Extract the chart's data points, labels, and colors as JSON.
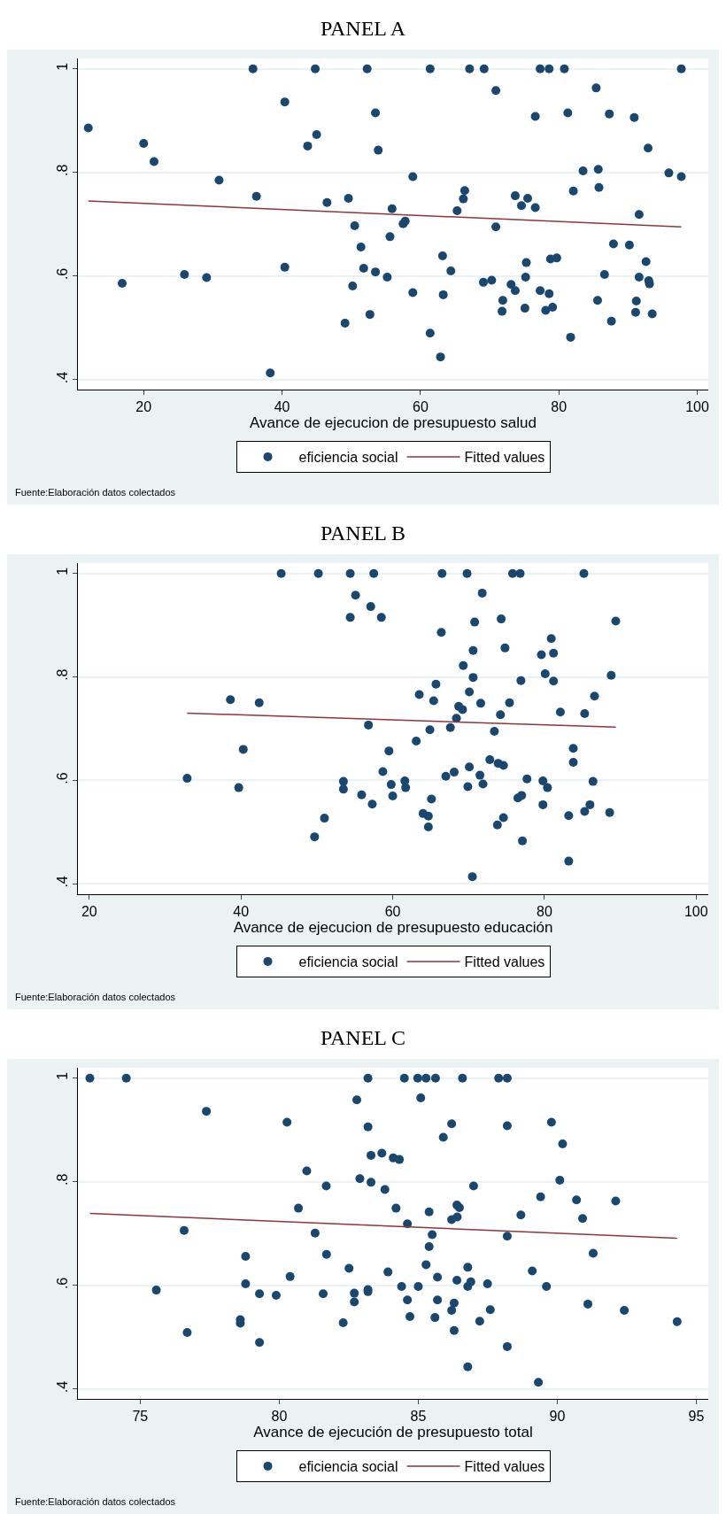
{
  "chart_data": [
    {
      "type": "scatter",
      "title": "PANEL A",
      "xlabel": "Avance de ejecucion de presupuesto salud",
      "xlim": [
        10.5,
        101.6
      ],
      "ylim": [
        0.381,
        1.02
      ],
      "xticks": [
        20,
        40,
        60,
        80,
        100
      ],
      "yticks": [
        {
          "value": 0.4,
          "label": ".4"
        },
        {
          "value": 0.6,
          "label": ".6"
        },
        {
          "value": 0.8,
          "label": ".8"
        },
        {
          "value": 1,
          "label": "1"
        }
      ],
      "grid": "y",
      "legend": "bottom",
      "annotations": [
        "Fuente:Elaboración datos colectados"
      ],
      "series": [
        {
          "name": "eficiencia social",
          "color": "#1a476f",
          "marker": "circle",
          "x": [
            12.0,
            16.9,
            20.0,
            21.5,
            25.9,
            29.1,
            30.9,
            35.8,
            36.3,
            38.3,
            40.4,
            40.4,
            43.7,
            44.8,
            45.0,
            46.5,
            49.1,
            49.6,
            50.2,
            50.5,
            51.4,
            51.8,
            52.3,
            52.7,
            53.5,
            53.5,
            53.9,
            55.2,
            55.6,
            55.9,
            57.5,
            57.8,
            58.9,
            58.9,
            61.4,
            61.4,
            62.9,
            63.2,
            63.3,
            64.4,
            65.3,
            66.2,
            66.4,
            67.1,
            69.1,
            69.2,
            70.3,
            70.9,
            70.9,
            71.9,
            71.8,
            73.1,
            73.7,
            73.7,
            74.6,
            75.2,
            75.1,
            75.5,
            75.3,
            76.6,
            76.6,
            77.3,
            77.3,
            78.6,
            78.6,
            78.1,
            78.8,
            79.1,
            79.7,
            80.8,
            81.3,
            82.1,
            81.7,
            83.5,
            85.4,
            85.7,
            85.8,
            85.6,
            87.3,
            86.6,
            87.6,
            87.9,
            90.2,
            90.9,
            91.2,
            91.1,
            91.6,
            91.6,
            92.6,
            92.9,
            93.0,
            93.1,
            93.5,
            95.9,
            97.7,
            97.7
          ],
          "values": [
            0.886,
            0.586,
            0.856,
            0.821,
            0.603,
            0.597,
            0.785,
            1,
            0.754,
            0.413,
            0.936,
            0.617,
            0.851,
            1,
            0.873,
            0.742,
            0.509,
            0.75,
            0.581,
            0.697,
            0.656,
            0.615,
            1,
            0.526,
            0.915,
            0.608,
            0.843,
            0.598,
            0.676,
            0.73,
            0.701,
            0.706,
            0.792,
            0.568,
            1,
            0.49,
            0.444,
            0.639,
            0.564,
            0.61,
            0.726,
            0.749,
            0.765,
            1,
            0.588,
            1,
            0.592,
            0.958,
            0.695,
            0.553,
            0.532,
            0.584,
            0.755,
            0.572,
            0.736,
            0.598,
            0.538,
            0.75,
            0.626,
            0.732,
            0.908,
            1,
            0.572,
            1,
            0.566,
            0.534,
            0.633,
            0.54,
            0.635,
            1,
            0.915,
            0.764,
            0.482,
            0.803,
            0.963,
            0.806,
            0.771,
            0.553,
            0.913,
            0.603,
            0.513,
            0.662,
            0.66,
            0.906,
            0.552,
            0.53,
            0.598,
            0.719,
            0.628,
            0.847,
            0.591,
            0.585,
            0.527,
            0.799,
            0.792,
            1
          ]
        },
        {
          "name": "Fitted values",
          "type": "line",
          "color": "#90353b",
          "marker": "none",
          "x": [
            12.0,
            97.7
          ],
          "values": [
            0.745,
            0.695
          ]
        }
      ]
    },
    {
      "type": "scatter",
      "title": "PANEL B",
      "xlabel": "Avance de ejecucion de presupuesto educación",
      "xlim": [
        18.5,
        101.6
      ],
      "ylim": [
        0.38,
        1.02
      ],
      "xticks": [
        20,
        40,
        60,
        80,
        100
      ],
      "yticks": [
        {
          "value": 0.4,
          "label": ".4"
        },
        {
          "value": 0.6,
          "label": ".6"
        },
        {
          "value": 0.8,
          "label": ".8"
        },
        {
          "value": 1,
          "label": "1"
        }
      ],
      "grid": "y",
      "legend": "bottom",
      "annotations": [
        "Fuente:Elaboración datos colectados"
      ],
      "series": [
        {
          "name": "eficiencia social",
          "color": "#1a476f",
          "marker": "circle",
          "x": [
            32.9,
            38.6,
            39.7,
            40.3,
            42.4,
            45.3,
            49.7,
            50.2,
            51.0,
            53.5,
            53.5,
            54.4,
            54.4,
            55.1,
            55.9,
            56.8,
            57.1,
            57.3,
            57.5,
            58.5,
            58.7,
            59.5,
            59.8,
            60.0,
            61.6,
            61.7,
            63.1,
            63.5,
            64.0,
            64.7,
            64.7,
            64.9,
            65.1,
            65.4,
            65.7,
            66.4,
            66.5,
            67.0,
            67.6,
            68.1,
            68.4,
            68.7,
            69.2,
            69.3,
            69.8,
            69.9,
            70.1,
            70.1,
            70.5,
            70.6,
            70.6,
            70.8,
            71.5,
            71.6,
            71.8,
            71.9,
            72.8,
            73.4,
            73.8,
            73.9,
            74.2,
            74.3,
            74.6,
            74.6,
            74.8,
            75.4,
            75.8,
            76.5,
            76.8,
            76.9,
            77.0,
            77.1,
            77.7,
            79.6,
            79.8,
            79.8,
            80.1,
            80.4,
            80.9,
            81.2,
            81.2,
            82.1,
            83.2,
            83.2,
            83.8,
            83.8,
            85.2,
            85.3,
            85.3,
            86.0,
            86.4,
            86.6,
            88.6,
            88.8,
            89.4
          ],
          "values": [
            0.604,
            0.756,
            0.586,
            0.66,
            0.75,
            1,
            0.491,
            1,
            0.527,
            0.598,
            0.583,
            1,
            0.915,
            0.958,
            0.572,
            0.707,
            0.936,
            0.554,
            1,
            0.915,
            0.617,
            0.657,
            0.592,
            0.57,
            0.599,
            0.586,
            0.676,
            0.766,
            0.536,
            0.531,
            0.51,
            0.698,
            0.564,
            0.754,
            0.786,
            0.886,
            1,
            0.608,
            0.702,
            0.616,
            0.72,
            0.743,
            0.737,
            0.822,
            1,
            0.588,
            0.771,
            0.626,
            0.414,
            0.799,
            0.851,
            0.906,
            0.61,
            0.749,
            0.962,
            0.593,
            0.64,
            0.695,
            0.514,
            0.633,
            0.727,
            0.912,
            0.528,
            0.629,
            0.856,
            0.75,
            1,
            0.566,
            1,
            0.793,
            0.571,
            0.483,
            0.603,
            0.843,
            0.599,
            0.553,
            0.806,
            0.586,
            0.874,
            0.846,
            0.792,
            0.732,
            0.532,
            0.444,
            0.662,
            0.635,
            1,
            0.729,
            0.54,
            0.553,
            0.598,
            0.763,
            0.538,
            0.803,
            0.908
          ]
        },
        {
          "name": "Fitted values",
          "type": "line",
          "color": "#90353b",
          "marker": "none",
          "x": [
            32.9,
            89.4
          ],
          "values": [
            0.73,
            0.703
          ]
        }
      ]
    },
    {
      "type": "scatter",
      "title": "PANEL C",
      "xlabel": "Avance de ejecución de presupuesto total",
      "xlim": [
        72.76,
        95.43
      ],
      "ylim": [
        0.381,
        1.02
      ],
      "xticks": [
        75,
        80,
        85,
        90,
        95
      ],
      "yticks": [
        {
          "value": 0.4,
          "label": ".4"
        },
        {
          "value": 0.6,
          "label": ".6"
        },
        {
          "value": 0.8,
          "label": ".8"
        },
        {
          "value": 1,
          "label": "1"
        }
      ],
      "grid": "y",
      "legend": "bottom",
      "annotations": [
        "Fuente:Elaboración datos colectados"
      ],
      "series": [
        {
          "name": "eficiencia social",
          "color": "#1a476f",
          "marker": "circle",
          "x": [
            73.19,
            74.5,
            75.58,
            76.58,
            76.69,
            77.38,
            78.6,
            78.6,
            78.79,
            78.79,
            79.29,
            79.29,
            79.89,
            80.28,
            80.39,
            80.69,
            80.99,
            81.29,
            81.58,
            81.69,
            81.7,
            82.3,
            82.51,
            82.7,
            82.7,
            82.79,
            82.9,
            83.19,
            83.19,
            83.19,
            83.19,
            83.3,
            83.3,
            83.69,
            83.8,
            83.91,
            84.1,
            84.2,
            84.32,
            84.4,
            84.5,
            84.61,
            84.61,
            84.7,
            84.98,
            85.0,
            85.09,
            85.28,
            85.28,
            85.39,
            85.39,
            85.5,
            85.62,
            85.6,
            85.69,
            85.69,
            85.9,
            86.2,
            86.2,
            86.2,
            86.29,
            86.29,
            86.39,
            86.4,
            86.39,
            86.48,
            86.59,
            86.78,
            86.78,
            86.78,
            86.89,
            86.99,
            87.21,
            87.49,
            87.59,
            87.89,
            88.2,
            88.2,
            88.2,
            88.2,
            88.69,
            89.1,
            89.32,
            89.4,
            89.61,
            89.79,
            90.09,
            90.19,
            90.69,
            90.91,
            91.1,
            91.29,
            92.1,
            92.41,
            94.31
          ],
          "values": [
            1,
            1,
            0.591,
            0.706,
            0.509,
            0.936,
            0.534,
            0.527,
            0.656,
            0.603,
            0.584,
            0.49,
            0.581,
            0.915,
            0.617,
            0.749,
            0.821,
            0.701,
            0.584,
            0.792,
            0.66,
            0.528,
            0.633,
            0.585,
            0.568,
            0.958,
            0.806,
            1,
            0.906,
            0.592,
            0.588,
            0.851,
            0.799,
            0.855,
            0.785,
            0.626,
            0.846,
            0.749,
            0.843,
            0.598,
            1,
            0.572,
            0.719,
            0.54,
            1,
            0.598,
            0.962,
            1,
            0.64,
            0.675,
            0.742,
            0.698,
            1,
            0.538,
            0.616,
            0.572,
            0.886,
            0.912,
            0.727,
            0.552,
            0.566,
            0.513,
            0.61,
            0.732,
            0.755,
            0.75,
            1,
            0.635,
            0.598,
            0.443,
            0.607,
            0.792,
            0.531,
            0.603,
            0.553,
            1,
            1,
            0.908,
            0.695,
            0.482,
            0.736,
            0.628,
            0.413,
            0.771,
            0.598,
            0.915,
            0.803,
            0.873,
            0.765,
            0.729,
            0.564,
            0.662,
            0.763,
            0.552,
            0.53
          ]
        },
        {
          "name": "Fitted values",
          "type": "line",
          "color": "#90353b",
          "marker": "none",
          "x": [
            73.19,
            94.31
          ],
          "values": [
            0.739,
            0.691
          ]
        }
      ]
    }
  ]
}
